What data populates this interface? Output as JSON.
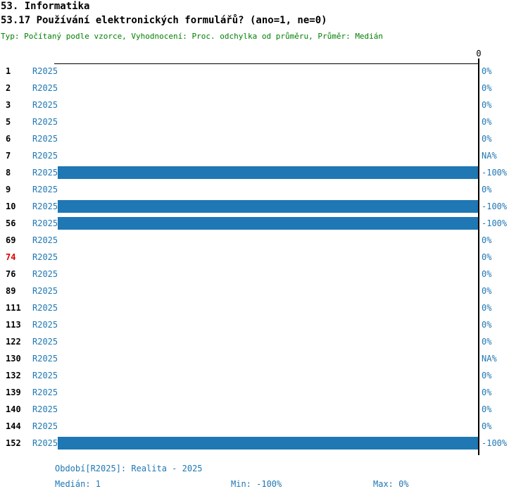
{
  "header": {
    "section": "53. Informatika",
    "title": "53.17 Používání elektronických formulářů? (ano=1, ne=0)",
    "meta": "Typ: Počítaný podle vzorce, Vyhodnocení: Proc. odchylka od průměru, Průměr: Medián"
  },
  "chart_data": {
    "type": "bar",
    "orientation": "horizontal",
    "title": "53.17 Používání elektronických formulářů? (ano=1, ne=0)",
    "series_name": "R2025",
    "xlim": [
      -100,
      0
    ],
    "zero_tick_label": "0",
    "grid": false,
    "legend_position": "none",
    "rows": [
      {
        "id": "1",
        "period": "R2025",
        "value": 0,
        "value_label": "0%",
        "highlight": false
      },
      {
        "id": "2",
        "period": "R2025",
        "value": 0,
        "value_label": "0%",
        "highlight": false
      },
      {
        "id": "3",
        "period": "R2025",
        "value": 0,
        "value_label": "0%",
        "highlight": false
      },
      {
        "id": "5",
        "period": "R2025",
        "value": 0,
        "value_label": "0%",
        "highlight": false
      },
      {
        "id": "6",
        "period": "R2025",
        "value": 0,
        "value_label": "0%",
        "highlight": false
      },
      {
        "id": "7",
        "period": "R2025",
        "value": null,
        "value_label": "NA%",
        "highlight": false
      },
      {
        "id": "8",
        "period": "R2025",
        "value": -100,
        "value_label": "-100%",
        "highlight": false
      },
      {
        "id": "9",
        "period": "R2025",
        "value": 0,
        "value_label": "0%",
        "highlight": false
      },
      {
        "id": "10",
        "period": "R2025",
        "value": -100,
        "value_label": "-100%",
        "highlight": false
      },
      {
        "id": "56",
        "period": "R2025",
        "value": -100,
        "value_label": "-100%",
        "highlight": false
      },
      {
        "id": "69",
        "period": "R2025",
        "value": 0,
        "value_label": "0%",
        "highlight": false
      },
      {
        "id": "74",
        "period": "R2025",
        "value": 0,
        "value_label": "0%",
        "highlight": true
      },
      {
        "id": "76",
        "period": "R2025",
        "value": 0,
        "value_label": "0%",
        "highlight": false
      },
      {
        "id": "89",
        "period": "R2025",
        "value": 0,
        "value_label": "0%",
        "highlight": false
      },
      {
        "id": "111",
        "period": "R2025",
        "value": 0,
        "value_label": "0%",
        "highlight": false
      },
      {
        "id": "113",
        "period": "R2025",
        "value": 0,
        "value_label": "0%",
        "highlight": false
      },
      {
        "id": "122",
        "period": "R2025",
        "value": 0,
        "value_label": "0%",
        "highlight": false
      },
      {
        "id": "130",
        "period": "R2025",
        "value": null,
        "value_label": "NA%",
        "highlight": false
      },
      {
        "id": "132",
        "period": "R2025",
        "value": 0,
        "value_label": "0%",
        "highlight": false
      },
      {
        "id": "139",
        "period": "R2025",
        "value": 0,
        "value_label": "0%",
        "highlight": false
      },
      {
        "id": "140",
        "period": "R2025",
        "value": 0,
        "value_label": "0%",
        "highlight": false
      },
      {
        "id": "144",
        "period": "R2025",
        "value": 0,
        "value_label": "0%",
        "highlight": false
      },
      {
        "id": "152",
        "period": "R2025",
        "value": -100,
        "value_label": "-100%",
        "highlight": false
      }
    ]
  },
  "footer": {
    "period_line": "Období[R2025]: Realita - 2025",
    "median": "Medián: 1",
    "min": "Min: -100%",
    "max": "Max: 0%"
  },
  "colors": {
    "blue": "#1F77B4",
    "bar": "#1F77B4",
    "green": "#008000",
    "red": "#DD0000",
    "axis": "#000000"
  }
}
